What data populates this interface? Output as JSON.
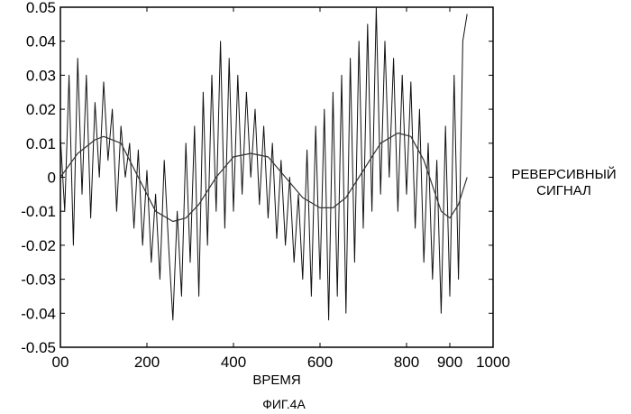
{
  "chart_data": {
    "type": "line",
    "xlabel": "ВРЕМЯ",
    "ylabel": "",
    "side_label": [
      "РЕВЕРСИВНЫЙ",
      "СИГНАЛ"
    ],
    "caption": "ФИГ.4А",
    "xlim": [
      0,
      1000
    ],
    "ylim": [
      -0.05,
      0.05
    ],
    "x_ticks": [
      {
        "value": 0,
        "label": "00"
      },
      {
        "value": 200,
        "label": "200"
      },
      {
        "value": 400,
        "label": "400"
      },
      {
        "value": 600,
        "label": "600"
      },
      {
        "value": 800,
        "label": "800"
      },
      {
        "value": 900,
        "label": "900"
      },
      {
        "value": 1000,
        "label": "1000"
      }
    ],
    "y_ticks": [
      {
        "value": 0.05,
        "label": "0.05"
      },
      {
        "value": 0.04,
        "label": "0.04"
      },
      {
        "value": 0.03,
        "label": "0.03"
      },
      {
        "value": 0.02,
        "label": "0.02"
      },
      {
        "value": 0.01,
        "label": "0.01"
      },
      {
        "value": 0.0,
        "label": "0"
      },
      {
        "value": -0.01,
        "label": "-0.01"
      },
      {
        "value": -0.02,
        "label": "-0.02"
      },
      {
        "value": -0.03,
        "label": "-0.03"
      },
      {
        "value": -0.04,
        "label": "-0.04"
      },
      {
        "value": -0.05,
        "label": "-0.05"
      }
    ],
    "grid": false,
    "series": [
      {
        "x": [
          0,
          10,
          20,
          30,
          40,
          50,
          60,
          70,
          80,
          90,
          100,
          110,
          120,
          130,
          140,
          150,
          160,
          170,
          180,
          190,
          200,
          210,
          220,
          230,
          240,
          250,
          260,
          270,
          280,
          290,
          300,
          310,
          320,
          330,
          340,
          350,
          360,
          370,
          380,
          390,
          400,
          410,
          420,
          430,
          440,
          450,
          460,
          470,
          480,
          490,
          500,
          510,
          520,
          530,
          540,
          550,
          560,
          570,
          580,
          590,
          600,
          610,
          620,
          630,
          640,
          650,
          660,
          670,
          680,
          690,
          700,
          710,
          720,
          730,
          740,
          750,
          760,
          770,
          780,
          790,
          800,
          810,
          820,
          830,
          840,
          850,
          860,
          870,
          880,
          890,
          900,
          910,
          920,
          930,
          940
        ],
        "values": [
          0.012,
          -0.01,
          0.03,
          -0.02,
          0.035,
          -0.005,
          0.03,
          -0.012,
          0.022,
          0.0,
          0.028,
          0.005,
          0.02,
          -0.01,
          0.015,
          0.0,
          0.01,
          -0.015,
          0.008,
          -0.02,
          0.002,
          -0.025,
          -0.005,
          -0.03,
          0.005,
          -0.02,
          -0.042,
          -0.01,
          -0.035,
          0.01,
          -0.025,
          0.015,
          -0.035,
          0.025,
          -0.02,
          0.03,
          -0.01,
          0.04,
          -0.015,
          0.035,
          -0.01,
          0.03,
          -0.005,
          0.025,
          0.0,
          0.02,
          -0.008,
          0.015,
          -0.012,
          0.01,
          -0.018,
          0.005,
          -0.02,
          0.0,
          -0.025,
          -0.005,
          -0.03,
          0.008,
          -0.035,
          0.015,
          -0.03,
          0.02,
          -0.042,
          0.025,
          -0.035,
          0.03,
          -0.04,
          0.035,
          -0.025,
          0.04,
          -0.015,
          0.045,
          -0.01,
          0.05,
          -0.005,
          0.04,
          0.0,
          0.035,
          -0.01,
          0.03,
          -0.005,
          0.028,
          -0.015,
          0.02,
          -0.025,
          0.01,
          -0.03,
          0.005,
          -0.04,
          0.015,
          -0.035,
          0.03,
          -0.03,
          0.04,
          0.048
        ]
      },
      {
        "x": [
          0,
          40,
          80,
          100,
          140,
          180,
          220,
          260,
          290,
          320,
          360,
          400,
          440,
          480,
          520,
          560,
          600,
          630,
          660,
          700,
          740,
          780,
          810,
          840,
          880,
          900,
          920,
          940
        ],
        "values": [
          0.0,
          0.007,
          0.011,
          0.012,
          0.01,
          0.0,
          -0.01,
          -0.013,
          -0.012,
          -0.008,
          0.0,
          0.006,
          0.007,
          0.006,
          0.0,
          -0.006,
          -0.009,
          -0.009,
          -0.006,
          0.002,
          0.01,
          0.013,
          0.012,
          0.005,
          -0.01,
          -0.012,
          -0.008,
          0.0
        ]
      }
    ]
  }
}
